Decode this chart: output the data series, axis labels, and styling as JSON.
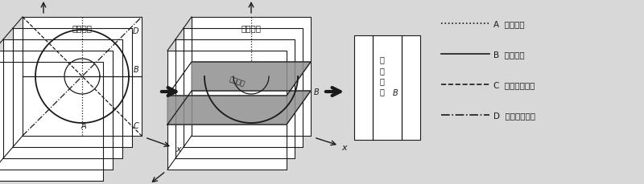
{
  "bg_color": "#d8d8d8",
  "dark": "#1a1a1a",
  "white": "#ffffff",
  "gray_slice": "#b0b0b0",
  "label1": "横向视图",
  "label2": "横向视图",
  "label3": "纵向视图",
  "label_A": "A",
  "label_B": "B",
  "label_C": "C",
  "label_D": "D",
  "legend": [
    {
      "text": "A  垂直切面",
      "ls": ":",
      "lw": 1.2
    },
    {
      "text": "B  水平切面",
      "ls": "-",
      "lw": 1.2
    },
    {
      "text": "C  左对角线切面",
      "ls": "--",
      "lw": 1.2
    },
    {
      "text": "D  右对角线切面",
      "ls": "-.",
      "lw": 1.2
    }
  ]
}
